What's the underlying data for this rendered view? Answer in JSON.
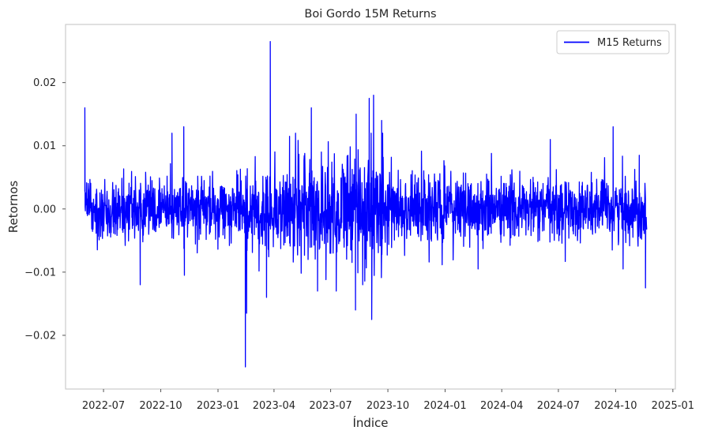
{
  "chart_data": {
    "type": "line",
    "title": "Boi Gordo 15M Returns",
    "xlabel": "Índice",
    "ylabel": "Retornos",
    "x_range": [
      "2022-05-01",
      "2025-01-05"
    ],
    "ylim": [
      -0.0285,
      0.0292
    ],
    "x_ticks": [
      "2022-07",
      "2022-10",
      "2023-01",
      "2023-04",
      "2023-07",
      "2023-10",
      "2024-01",
      "2024-04",
      "2024-07",
      "2024-10",
      "2025-01"
    ],
    "y_ticks": [
      -0.02,
      -0.01,
      0.0,
      0.01,
      0.02
    ],
    "y_tick_labels": [
      "−0.02",
      "−0.01",
      "0.00",
      "0.01",
      "0.02"
    ],
    "grid": false,
    "legend": {
      "position": "top-right",
      "entries": [
        "M15 Returns"
      ]
    },
    "series": [
      {
        "name": "M15 Returns",
        "color": "#0000ff",
        "x_start": "2022-06-01",
        "x_end": "2024-11-20",
        "notable_points": [
          {
            "x": "2022-06-01",
            "y": 0.016
          },
          {
            "x": "2022-10-19",
            "y": 0.012
          },
          {
            "x": "2022-11-07",
            "y": 0.013
          },
          {
            "x": "2022-11-08",
            "y": -0.0105
          },
          {
            "x": "2022-08-29",
            "y": -0.012
          },
          {
            "x": "2023-02-14",
            "y": -0.025
          },
          {
            "x": "2023-02-16",
            "y": -0.0165
          },
          {
            "x": "2023-03-20",
            "y": -0.014
          },
          {
            "x": "2023-03-26",
            "y": 0.0265
          },
          {
            "x": "2023-04-26",
            "y": 0.0115
          },
          {
            "x": "2023-05-31",
            "y": 0.016
          },
          {
            "x": "2023-06-10",
            "y": -0.013
          },
          {
            "x": "2023-07-10",
            "y": -0.013
          },
          {
            "x": "2023-08-11",
            "y": 0.015
          },
          {
            "x": "2023-08-10",
            "y": -0.016
          },
          {
            "x": "2023-09-01",
            "y": 0.0175
          },
          {
            "x": "2023-09-05",
            "y": -0.0175
          },
          {
            "x": "2023-09-08",
            "y": 0.018
          },
          {
            "x": "2023-09-21",
            "y": 0.014
          },
          {
            "x": "2024-02-23",
            "y": -0.0095
          },
          {
            "x": "2024-06-18",
            "y": 0.011
          },
          {
            "x": "2024-09-27",
            "y": 0.013
          },
          {
            "x": "2024-10-13",
            "y": -0.0095
          },
          {
            "x": "2024-11-08",
            "y": 0.0085
          },
          {
            "x": "2024-11-18",
            "y": -0.0125
          }
        ]
      }
    ]
  }
}
